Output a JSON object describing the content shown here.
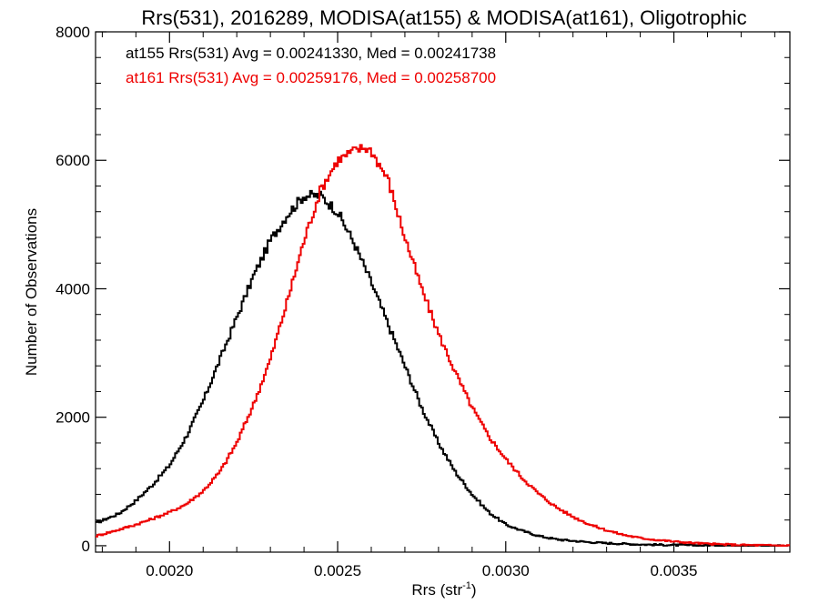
{
  "chart_data": {
    "type": "line",
    "title": "Rrs(531), 2016289, MODISA(at155) & MODISA(at161), Oligotrophic",
    "xlabel": "Rrs (str",
    "xlabel_sup": "-1",
    "xlabel_close": ")",
    "ylabel": "Number of Observations",
    "xlim": [
      0.00178,
      0.003845
    ],
    "ylim": [
      -100,
      8000
    ],
    "xticks": [
      {
        "value": 0.002,
        "label": "0.0020"
      },
      {
        "value": 0.0025,
        "label": "0.0025"
      },
      {
        "value": 0.003,
        "label": "0.0030"
      },
      {
        "value": 0.0035,
        "label": "0.0035"
      }
    ],
    "yticks": [
      {
        "value": 0,
        "label": "0"
      },
      {
        "value": 2000,
        "label": "2000"
      },
      {
        "value": 4000,
        "label": "4000"
      },
      {
        "value": 6000,
        "label": "6000"
      },
      {
        "value": 8000,
        "label": "8000"
      }
    ],
    "grid": false,
    "annotations": [
      {
        "text": "at155 Rrs(531) Avg = 0.00241330, Med = 0.00241738",
        "color": "#000000"
      },
      {
        "text": "at161 Rrs(531) Avg = 0.00259176, Med = 0.00258700",
        "color": "#ee0000"
      }
    ],
    "series": [
      {
        "color": "#000000",
        "line_style": "histogram-step",
        "x": [
          0.00178,
          0.00185,
          0.0019,
          0.00195,
          0.002,
          0.00205,
          0.0021,
          0.00215,
          0.0022,
          0.00225,
          0.0023,
          0.00235,
          0.0024,
          0.00245,
          0.0025,
          0.00255,
          0.0026,
          0.00265,
          0.0027,
          0.00275,
          0.0028,
          0.00285,
          0.0029,
          0.00295,
          0.003,
          0.00305,
          0.0031,
          0.00315,
          0.0032,
          0.00325,
          0.0033,
          0.00335,
          0.0034,
          0.00345,
          0.0035,
          0.00355,
          0.0036,
          0.00365,
          0.0037,
          0.00375,
          0.0038,
          0.003845
        ],
        "values": [
          350,
          500,
          700,
          950,
          1250,
          1700,
          2250,
          2900,
          3550,
          4200,
          4750,
          5150,
          5450,
          5450,
          5200,
          4700,
          4100,
          3450,
          2800,
          2150,
          1600,
          1150,
          800,
          520,
          330,
          230,
          150,
          100,
          75,
          55,
          40,
          30,
          20,
          15,
          10,
          8,
          5,
          4,
          3,
          2,
          1,
          1
        ]
      },
      {
        "color": "#ee0000",
        "line_style": "histogram-step",
        "x": [
          0.00178,
          0.00185,
          0.0019,
          0.00195,
          0.002,
          0.00205,
          0.0021,
          0.00215,
          0.0022,
          0.00225,
          0.0023,
          0.00235,
          0.0024,
          0.00245,
          0.0025,
          0.00255,
          0.00258,
          0.0026,
          0.00265,
          0.0027,
          0.00275,
          0.0028,
          0.00285,
          0.0029,
          0.00295,
          0.003,
          0.00305,
          0.0031,
          0.00315,
          0.0032,
          0.00325,
          0.0033,
          0.00335,
          0.0034,
          0.00345,
          0.0035,
          0.00355,
          0.0036,
          0.00365,
          0.0037,
          0.00375,
          0.0038,
          0.003845
        ],
        "values": [
          150,
          250,
          330,
          420,
          520,
          650,
          850,
          1150,
          1600,
          2200,
          2900,
          3800,
          4750,
          5550,
          6000,
          6150,
          6200,
          6150,
          5700,
          4800,
          4000,
          3300,
          2700,
          2150,
          1700,
          1350,
          1050,
          800,
          600,
          450,
          330,
          240,
          170,
          120,
          90,
          65,
          45,
          30,
          20,
          12,
          8,
          5,
          3
        ]
      }
    ]
  }
}
